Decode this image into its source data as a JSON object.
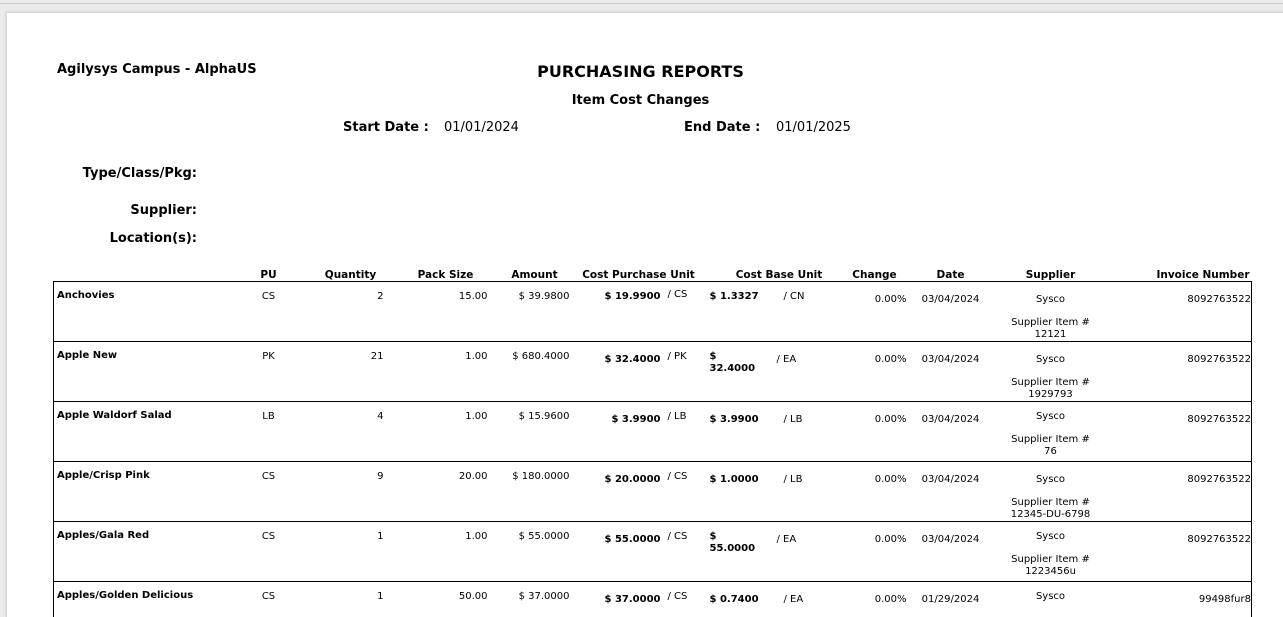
{
  "report": {
    "organization": "Agilysys Campus - AlphaUS",
    "title": "PURCHASING REPORTS",
    "subtitle": "Item Cost Changes",
    "start_date_label": "Start Date :",
    "start_date": "01/01/2024",
    "end_date_label": "End Date :",
    "end_date": "01/01/2025",
    "type_class_pkg_label": "Type/Class/Pkg:",
    "supplier_label": "Supplier:",
    "locations_label": "Location(s):"
  },
  "columns": [
    "PU",
    "Quantity",
    "Pack Size",
    "Amount",
    "Cost Purchase Unit",
    "Cost Base Unit",
    "Change",
    "Date",
    "Supplier",
    "Invoice Number"
  ],
  "rows": [
    {
      "name": "Anchovies",
      "pu": "CS",
      "qty": "2",
      "pack": "15.00",
      "amount": "$ 39.9800",
      "cpu": "$ 19.9900",
      "cpu_unit": "/ CS",
      "cbu": "$ 1.3327",
      "cbu_unit": "/ CN",
      "change": "0.00%",
      "date": "03/04/2024",
      "supplier": "Sysco",
      "supplier_item_label": "Supplier Item #",
      "supplier_item": "12121",
      "invoice": "8092763522"
    },
    {
      "name": "Apple New",
      "pu": "PK",
      "qty": "21",
      "pack": "1.00",
      "amount": "$ 680.4000",
      "cpu": "$ 32.4000",
      "cpu_unit": "/ PK",
      "cbu": "$ 32.4000",
      "cbu_unit": "/ EA",
      "change": "0.00%",
      "date": "03/04/2024",
      "supplier": "Sysco",
      "supplier_item_label": "Supplier Item #",
      "supplier_item": "1929793",
      "invoice": "8092763522"
    },
    {
      "name": "Apple Waldorf Salad",
      "pu": "LB",
      "qty": "4",
      "pack": "1.00",
      "amount": "$ 15.9600",
      "cpu": "$ 3.9900",
      "cpu_unit": "/ LB",
      "cbu": "$ 3.9900",
      "cbu_unit": "/ LB",
      "change": "0.00%",
      "date": "03/04/2024",
      "supplier": "Sysco",
      "supplier_item_label": "Supplier Item #",
      "supplier_item": "76",
      "invoice": "8092763522"
    },
    {
      "name": "Apple/Crisp Pink",
      "pu": "CS",
      "qty": "9",
      "pack": "20.00",
      "amount": "$ 180.0000",
      "cpu": "$ 20.0000",
      "cpu_unit": "/ CS",
      "cbu": "$ 1.0000",
      "cbu_unit": "/ LB",
      "change": "0.00%",
      "date": "03/04/2024",
      "supplier": "Sysco",
      "supplier_item_label": "Supplier Item #",
      "supplier_item": "12345-DU-6798",
      "invoice": "8092763522"
    },
    {
      "name": "Apples/Gala Red",
      "pu": "CS",
      "qty": "1",
      "pack": "1.00",
      "amount": "$ 55.0000",
      "cpu": "$ 55.0000",
      "cpu_unit": "/ CS",
      "cbu": "$ 55.0000",
      "cbu_unit": "/ EA",
      "change": "0.00%",
      "date": "03/04/2024",
      "supplier": "Sysco",
      "supplier_item_label": "Supplier Item #",
      "supplier_item": "1223456u",
      "invoice": "8092763522"
    },
    {
      "name": "Apples/Golden Delicious",
      "pu": "CS",
      "qty": "1",
      "pack": "50.00",
      "amount": "$ 37.0000",
      "cpu": "$ 37.0000",
      "cpu_unit": "/ CS",
      "cbu": "$ 0.7400",
      "cbu_unit": "/ EA",
      "change": "0.00%",
      "date": "01/29/2024",
      "supplier": "Sysco",
      "supplier_item_label": "",
      "supplier_item": "",
      "invoice": "99498fur8"
    }
  ]
}
